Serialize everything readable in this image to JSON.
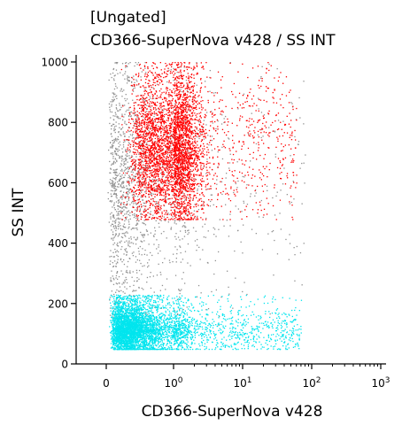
{
  "chart_data": {
    "type": "scatter",
    "title_line1": "[Ungated]",
    "title_line2": "CD366-SuperNova v428 / SS INT",
    "xlabel": "CD366-SuperNova v428",
    "ylabel": "SS INT",
    "x_scale": "biexponential (linear near 0, logarithmic above 10^0)",
    "x_ticks": [
      {
        "value": 0,
        "base": "0",
        "exp": ""
      },
      {
        "value": 1,
        "base": "10",
        "exp": "0"
      },
      {
        "value": 10,
        "base": "10",
        "exp": "1"
      },
      {
        "value": 100,
        "base": "10",
        "exp": "2"
      },
      {
        "value": 1000,
        "base": "10",
        "exp": "3"
      }
    ],
    "ylim": [
      0,
      1000
    ],
    "y_ticks": [
      0,
      200,
      400,
      600,
      800,
      1000
    ],
    "grid": false,
    "legend": "none",
    "populations": [
      {
        "color": "#ff0000",
        "count": 4200,
        "x_center": 1.0,
        "x_spread_log": 0.2,
        "x_tail_max": 60,
        "y_range": [
          480,
          1000
        ],
        "y_center": 720
      },
      {
        "color": "#00e5ee",
        "count": 4600,
        "x_center": 0.4,
        "x_spread_log": 0.3,
        "x_tail_max": 70,
        "y_range": [
          50,
          230
        ],
        "y_center": 110
      },
      {
        "color": "#909090",
        "count": 1700,
        "x_center": 0.35,
        "x_spread_log": 0.4,
        "x_tail_max": 80,
        "y_range": [
          130,
          1000
        ],
        "y_center": 600
      }
    ],
    "colors": {
      "axis": "#000000",
      "text": "#000000",
      "background": "#ffffff"
    }
  }
}
